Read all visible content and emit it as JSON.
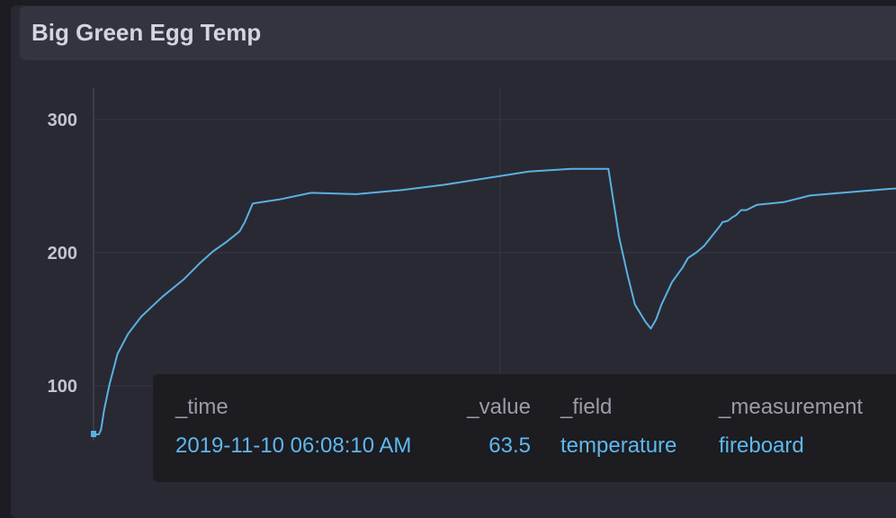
{
  "cell": {
    "title": "Big Green Egg Temp"
  },
  "tooltip": {
    "headers": {
      "time": "_time",
      "value": "_value",
      "field": "_field",
      "measurement": "_measurement"
    },
    "row": {
      "time": "2019-11-10 06:08:10 AM",
      "value": "63.5",
      "field": "temperature",
      "measurement": "fireboard"
    }
  },
  "colors": {
    "series": "#5ab0e2",
    "grid": "#383843",
    "background": "#292933"
  },
  "chart_data": {
    "type": "line",
    "title": "Big Green Egg Temp",
    "xlabel": "",
    "ylabel": "",
    "ylim": [
      55,
      323
    ],
    "yticks": [
      100,
      200,
      300
    ],
    "grid": true,
    "legend": "none",
    "series": [
      {
        "color": "#5ab0e2",
        "x": [
          0,
          1,
          1.4,
          2,
          3,
          4.5,
          6.5,
          9,
          13,
          17,
          20,
          22.5,
          25,
          27.5,
          28.5,
          30,
          35,
          41,
          49.5,
          58,
          66,
          74,
          82,
          90,
          97,
          99,
          100.5,
          102,
          104,
          105,
          106,
          107,
          109,
          111,
          112,
          113.5,
          115,
          116,
          117,
          118,
          118.5,
          119.5,
          120.5,
          121,
          122,
          123,
          125,
          130,
          135,
          141,
          150,
          155
        ],
        "y": [
          63.5,
          63.5,
          67,
          82,
          101,
          124,
          139,
          152,
          167,
          180,
          192,
          201,
          208,
          216,
          223,
          237,
          240,
          245,
          244,
          247,
          251,
          256,
          261,
          263,
          263,
          212,
          185,
          161,
          148,
          143,
          150,
          161,
          178,
          189,
          196,
          200,
          205,
          210,
          215,
          220,
          223,
          224,
          227,
          228,
          232,
          232,
          236,
          238,
          243,
          245,
          248,
          249
        ]
      }
    ]
  }
}
